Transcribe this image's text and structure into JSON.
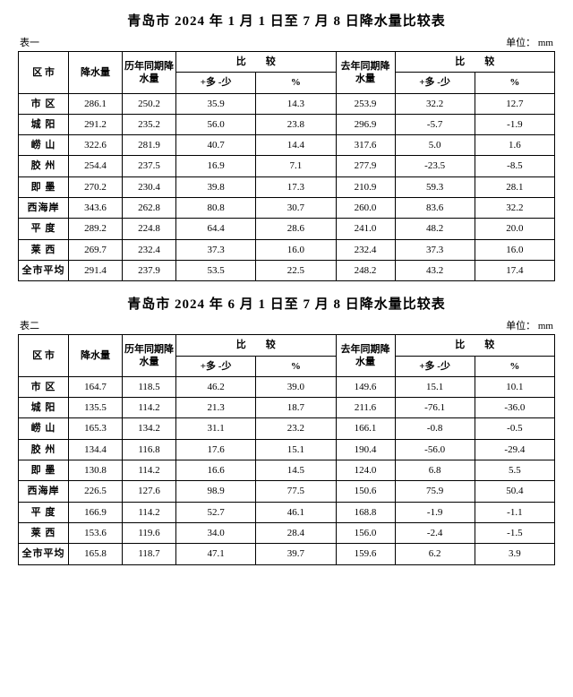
{
  "tables": [
    {
      "title": "青岛市 2024 年 1 月 1 日至 7 月 8 日降水量比较表",
      "label": "表一",
      "unit": "单位： mm",
      "headers": {
        "region": "区 市",
        "precip": "降水量",
        "hist": "历年同期降水量",
        "compare": "比　　较",
        "diff": "+多 -少",
        "pct": "%",
        "lastyear": "去年同期降水量"
      },
      "rows": [
        {
          "region": "市 区",
          "precip": "286.1",
          "hist": "250.2",
          "diff": "35.9",
          "pct": "14.3",
          "last": "253.9",
          "diff2": "32.2",
          "pct2": "12.7"
        },
        {
          "region": "城 阳",
          "precip": "291.2",
          "hist": "235.2",
          "diff": "56.0",
          "pct": "23.8",
          "last": "296.9",
          "diff2": "-5.7",
          "pct2": "-1.9"
        },
        {
          "region": "崂 山",
          "precip": "322.6",
          "hist": "281.9",
          "diff": "40.7",
          "pct": "14.4",
          "last": "317.6",
          "diff2": "5.0",
          "pct2": "1.6"
        },
        {
          "region": "胶 州",
          "precip": "254.4",
          "hist": "237.5",
          "diff": "16.9",
          "pct": "7.1",
          "last": "277.9",
          "diff2": "-23.5",
          "pct2": "-8.5"
        },
        {
          "region": "即 墨",
          "precip": "270.2",
          "hist": "230.4",
          "diff": "39.8",
          "pct": "17.3",
          "last": "210.9",
          "diff2": "59.3",
          "pct2": "28.1"
        },
        {
          "region": "西海岸",
          "precip": "343.6",
          "hist": "262.8",
          "diff": "80.8",
          "pct": "30.7",
          "last": "260.0",
          "diff2": "83.6",
          "pct2": "32.2"
        },
        {
          "region": "平 度",
          "precip": "289.2",
          "hist": "224.8",
          "diff": "64.4",
          "pct": "28.6",
          "last": "241.0",
          "diff2": "48.2",
          "pct2": "20.0"
        },
        {
          "region": "莱 西",
          "precip": "269.7",
          "hist": "232.4",
          "diff": "37.3",
          "pct": "16.0",
          "last": "232.4",
          "diff2": "37.3",
          "pct2": "16.0"
        },
        {
          "region": "全市平均",
          "precip": "291.4",
          "hist": "237.9",
          "diff": "53.5",
          "pct": "22.5",
          "last": "248.2",
          "diff2": "43.2",
          "pct2": "17.4"
        }
      ]
    },
    {
      "title": "青岛市 2024 年 6 月 1 日至 7 月 8 日降水量比较表",
      "label": "表二",
      "unit": "单位： mm",
      "headers": {
        "region": "区 市",
        "precip": "降水量",
        "hist": "历年同期降水量",
        "compare": "比　　较",
        "diff": "+多 -少",
        "pct": "%",
        "lastyear": "去年同期降水量"
      },
      "rows": [
        {
          "region": "市 区",
          "precip": "164.7",
          "hist": "118.5",
          "diff": "46.2",
          "pct": "39.0",
          "last": "149.6",
          "diff2": "15.1",
          "pct2": "10.1"
        },
        {
          "region": "城 阳",
          "precip": "135.5",
          "hist": "114.2",
          "diff": "21.3",
          "pct": "18.7",
          "last": "211.6",
          "diff2": "-76.1",
          "pct2": "-36.0"
        },
        {
          "region": "崂 山",
          "precip": "165.3",
          "hist": "134.2",
          "diff": "31.1",
          "pct": "23.2",
          "last": "166.1",
          "diff2": "-0.8",
          "pct2": "-0.5"
        },
        {
          "region": "胶 州",
          "precip": "134.4",
          "hist": "116.8",
          "diff": "17.6",
          "pct": "15.1",
          "last": "190.4",
          "diff2": "-56.0",
          "pct2": "-29.4"
        },
        {
          "region": "即 墨",
          "precip": "130.8",
          "hist": "114.2",
          "diff": "16.6",
          "pct": "14.5",
          "last": "124.0",
          "diff2": "6.8",
          "pct2": "5.5"
        },
        {
          "region": "西海岸",
          "precip": "226.5",
          "hist": "127.6",
          "diff": "98.9",
          "pct": "77.5",
          "last": "150.6",
          "diff2": "75.9",
          "pct2": "50.4"
        },
        {
          "region": "平 度",
          "precip": "166.9",
          "hist": "114.2",
          "diff": "52.7",
          "pct": "46.1",
          "last": "168.8",
          "diff2": "-1.9",
          "pct2": "-1.1"
        },
        {
          "region": "莱 西",
          "precip": "153.6",
          "hist": "119.6",
          "diff": "34.0",
          "pct": "28.4",
          "last": "156.0",
          "diff2": "-2.4",
          "pct2": "-1.5"
        },
        {
          "region": "全市平均",
          "precip": "165.8",
          "hist": "118.7",
          "diff": "47.1",
          "pct": "39.7",
          "last": "159.6",
          "diff2": "6.2",
          "pct2": "3.9"
        }
      ]
    }
  ]
}
